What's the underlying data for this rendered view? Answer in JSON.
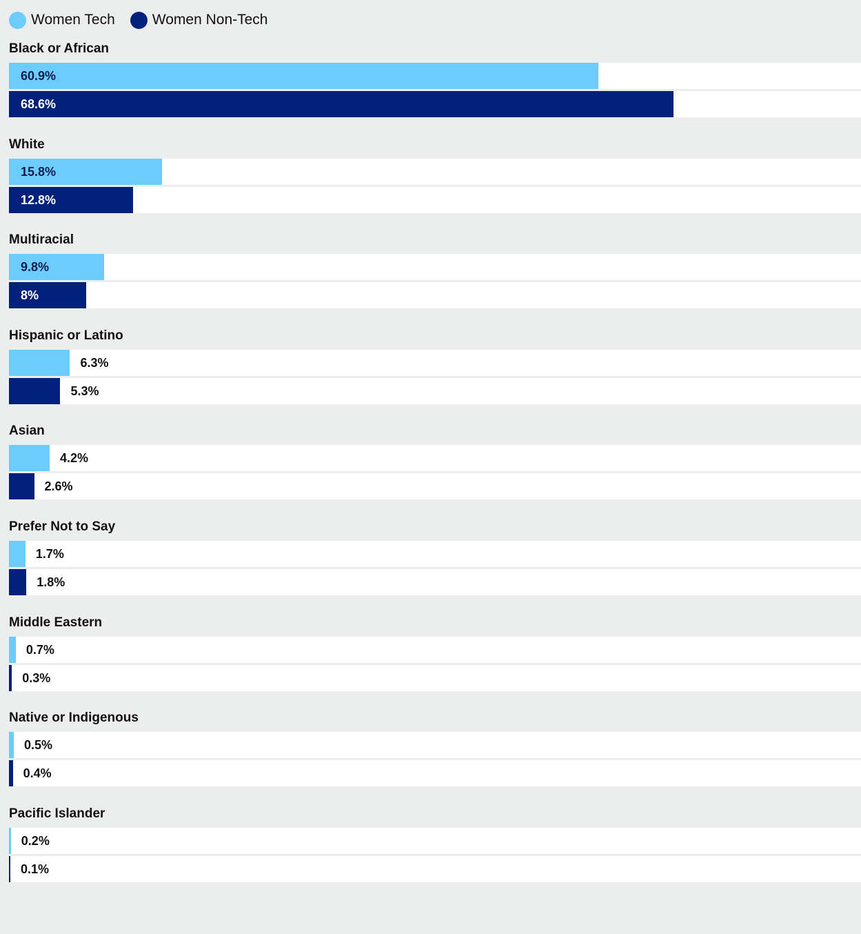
{
  "chart_data": {
    "type": "bar",
    "orientation": "horizontal",
    "legend_position": "top-left",
    "grid": false,
    "xlim": [
      0,
      88
    ],
    "series": [
      {
        "name": "Women Tech",
        "color": "#6ccdfd",
        "values": [
          60.9,
          15.8,
          9.8,
          6.3,
          4.2,
          1.7,
          0.7,
          0.5,
          0.2
        ],
        "labels": [
          "60.9%",
          "15.8%",
          "9.8%",
          "6.3%",
          "4.2%",
          "1.7%",
          "0.7%",
          "0.5%",
          "0.2%"
        ]
      },
      {
        "name": "Women Non-Tech",
        "color": "#03217b",
        "values": [
          68.6,
          12.8,
          8,
          5.3,
          2.6,
          1.8,
          0.3,
          0.4,
          0.1
        ],
        "labels": [
          "68.6%",
          "12.8%",
          "8%",
          "5.3%",
          "2.6%",
          "1.8%",
          "0.3%",
          "0.4%",
          "0.1%"
        ]
      }
    ],
    "categories": [
      "Black or African",
      "White",
      "Multiracial",
      "Hispanic or Latino",
      "Asian",
      "Prefer Not to Say",
      "Middle Eastern",
      "Native or Indigenous",
      "Pacific Islander"
    ]
  }
}
